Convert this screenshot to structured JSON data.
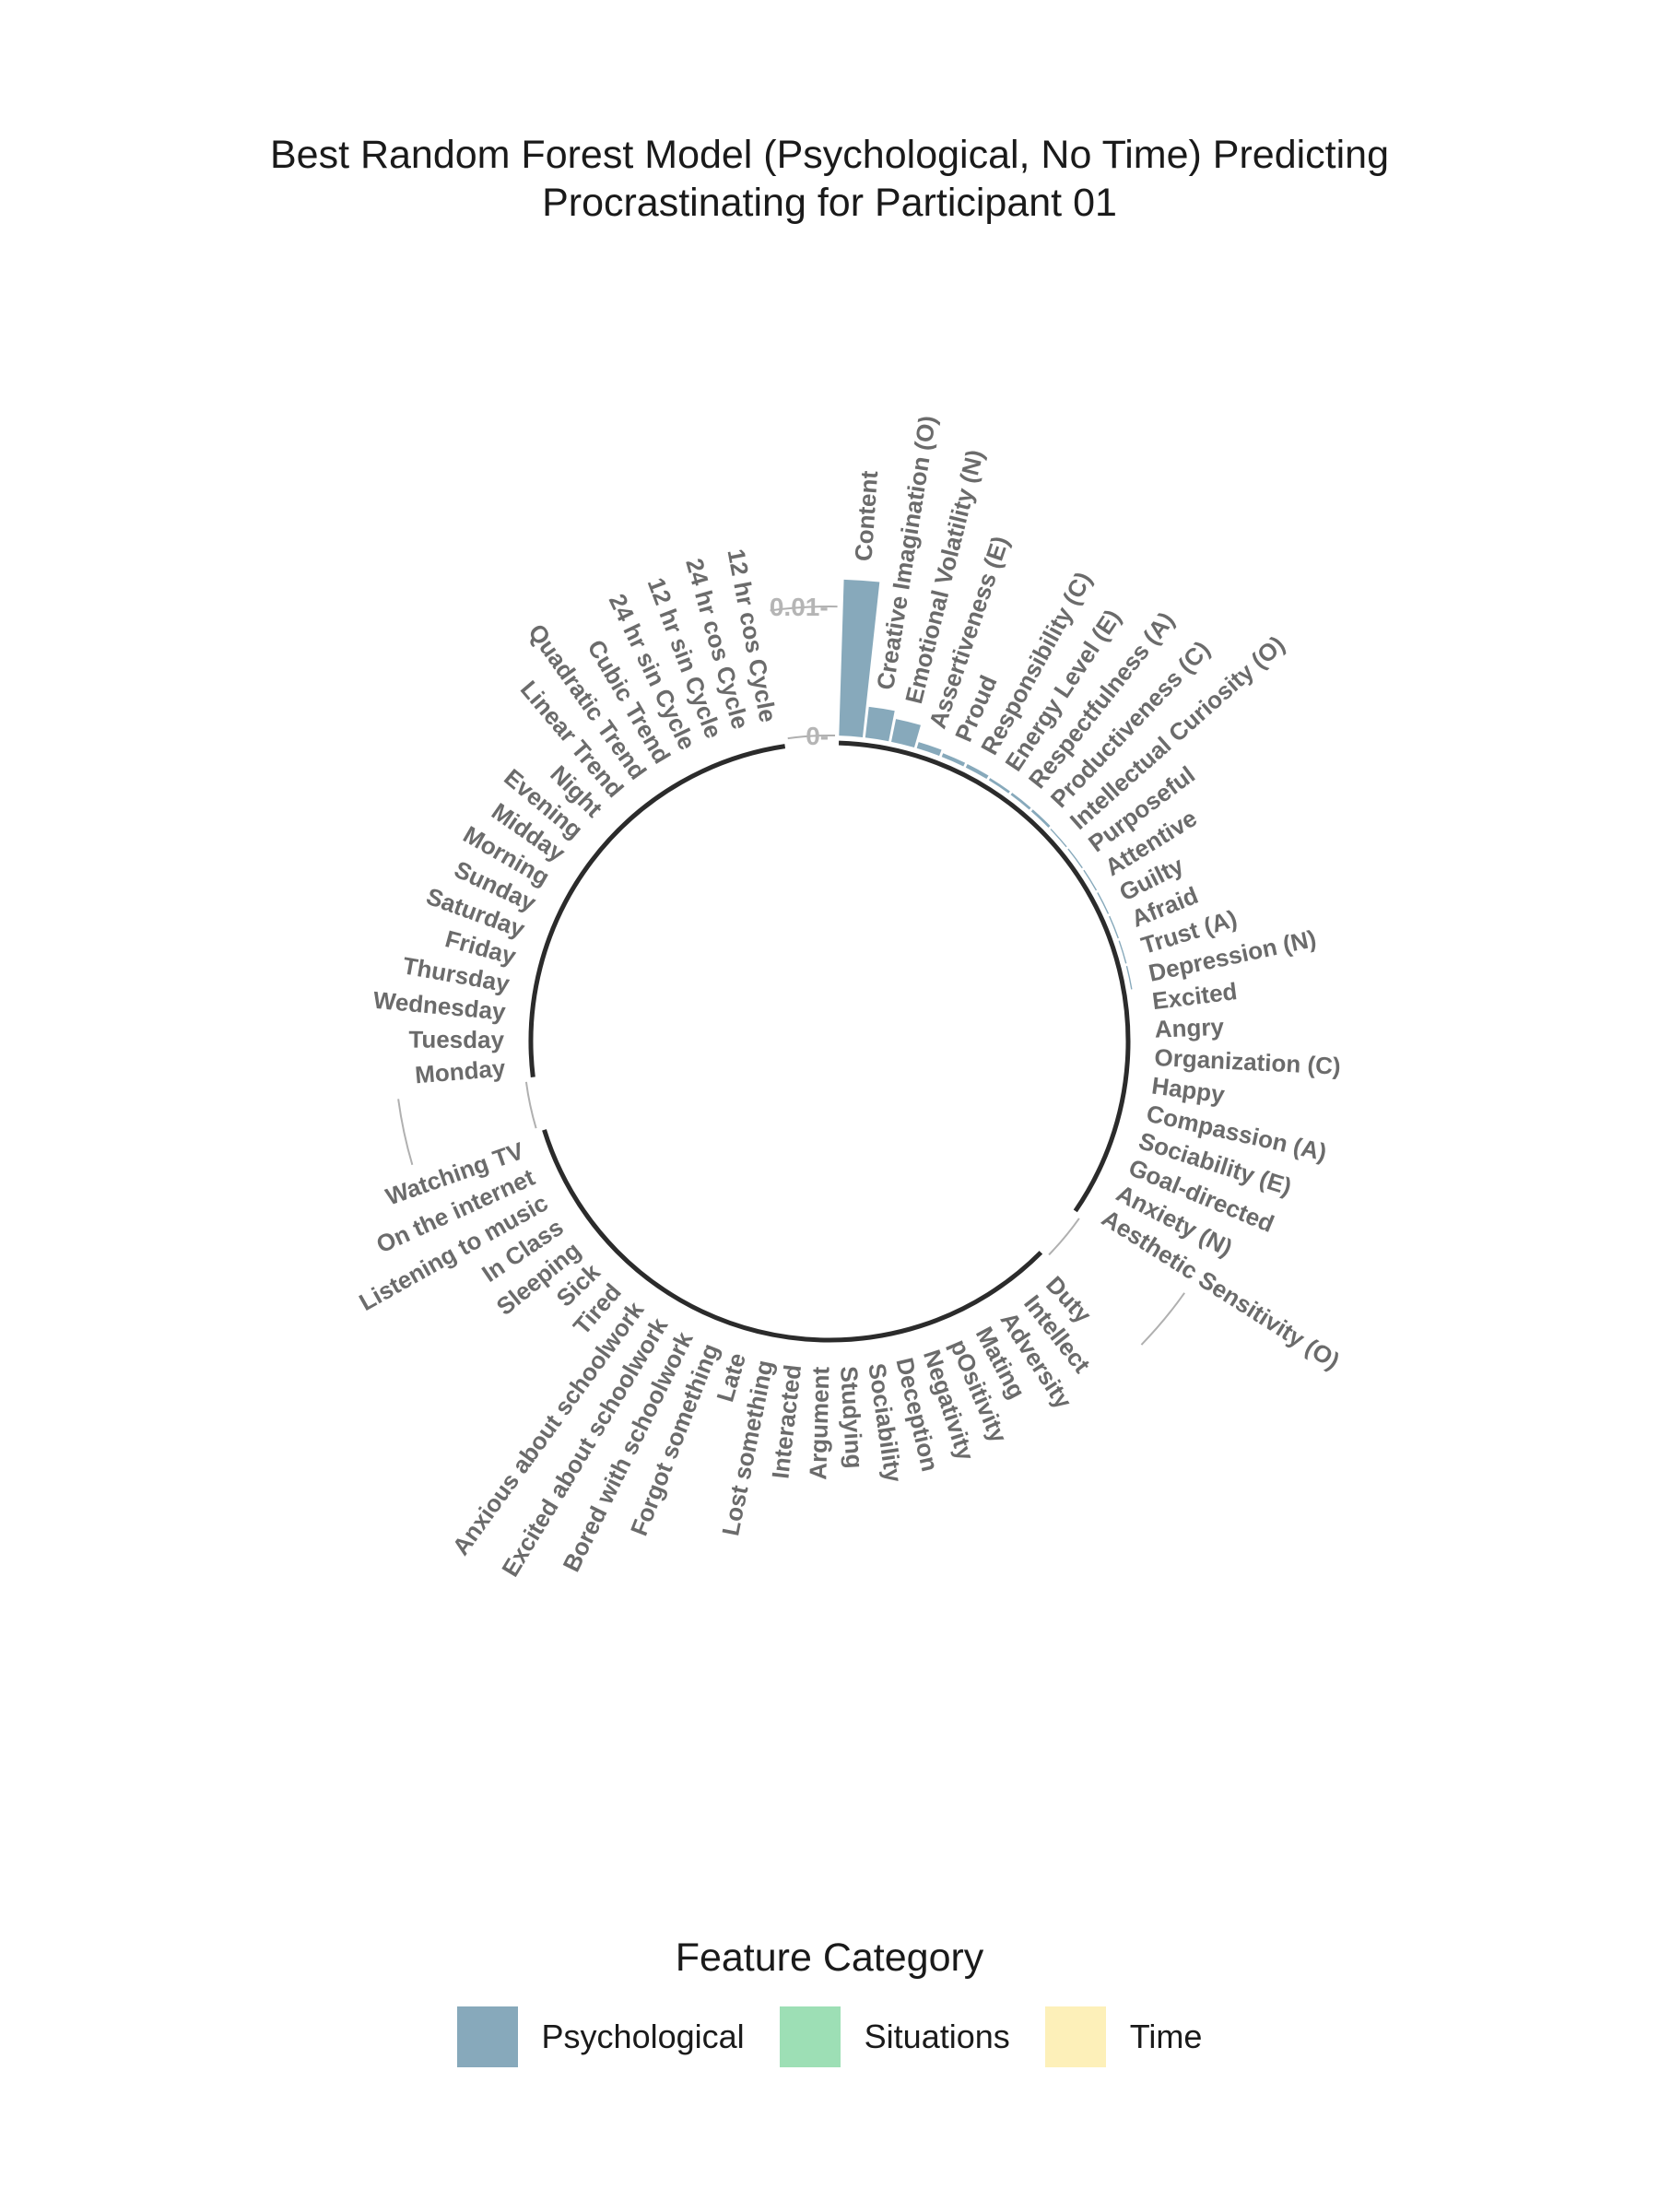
{
  "title_lines": [
    "Best Random Forest Model (Psychological, No Time) Predicting",
    "Procrastinating for Participant 01"
  ],
  "chart_data": {
    "type": "bar",
    "coordinate_system": "polar",
    "title": "Best Random Forest Model (Psychological, No Time) Predicting Procrastinating for Participant 01",
    "ylim": [
      0,
      0.012
    ],
    "yticks": [
      {
        "label": "0.01-",
        "value": 0.01
      },
      {
        "label": "0-",
        "value": 0
      }
    ],
    "legend_title": "Feature Category",
    "legend_position": "bottom",
    "colors": {
      "Psychological": "#87a9bb",
      "Situations": "#9ddfb5",
      "Time": "#fdf0b9"
    },
    "groups": [
      {
        "category": "Psychological",
        "features": [
          {
            "label": "Content",
            "value": 0.0121
          },
          {
            "label": "Creative Imagination (O)",
            "value": 0.0024
          },
          {
            "label": "Emotional Volatility (N)",
            "value": 0.0018
          },
          {
            "label": "Assertiveness (E)",
            "value": 0.0005
          },
          {
            "label": "Proud",
            "value": 0.0003
          },
          {
            "label": "Responsibility (C)",
            "value": 0.0003
          },
          {
            "label": "Energy Level (E)",
            "value": 0.0002
          },
          {
            "label": "Respectfulness (A)",
            "value": 0.0002
          },
          {
            "label": "Productiveness (C)",
            "value": 0.0002
          },
          {
            "label": "Intellectual Curiosity (O)",
            "value": 0.0001
          },
          {
            "label": "Purposeful",
            "value": 0.0001
          },
          {
            "label": "Attentive",
            "value": 0.0001
          },
          {
            "label": "Guilty",
            "value": 0.0001
          },
          {
            "label": "Afraid",
            "value": 0.0001
          },
          {
            "label": "Trust (A)",
            "value": 0.0001
          },
          {
            "label": "Depression (N)",
            "value": 0.0001
          },
          {
            "label": "Excited",
            "value": 0
          },
          {
            "label": "Angry",
            "value": 0
          },
          {
            "label": "Organization (C)",
            "value": 0
          },
          {
            "label": "Happy",
            "value": 0
          },
          {
            "label": "Compassion (A)",
            "value": 0
          },
          {
            "label": "Sociability (E)",
            "value": 0
          },
          {
            "label": "Goal-directed",
            "value": 0
          },
          {
            "label": "Anxiety (N)",
            "value": 0
          },
          {
            "label": "Aesthetic Sensitivity (O)",
            "value": 0
          }
        ]
      },
      {
        "category": "Situations",
        "features": [
          {
            "label": "Duty",
            "value": 0
          },
          {
            "label": "Intellect",
            "value": 0
          },
          {
            "label": "Adversity",
            "value": 0
          },
          {
            "label": "Mating",
            "value": 0
          },
          {
            "label": "pOsitivity",
            "value": 0
          },
          {
            "label": "Negativity",
            "value": 0
          },
          {
            "label": "Deception",
            "value": 0
          },
          {
            "label": "Sociability",
            "value": 0
          },
          {
            "label": "Studying",
            "value": 0
          },
          {
            "label": "Argument",
            "value": 0
          },
          {
            "label": "Interacted",
            "value": 0
          },
          {
            "label": "Lost something",
            "value": 0
          },
          {
            "label": "Late",
            "value": 0
          },
          {
            "label": "Forgot something",
            "value": 0
          },
          {
            "label": "Bored with schoolwork",
            "value": 0
          },
          {
            "label": "Excited about schoolwork",
            "value": 0
          },
          {
            "label": "Anxious about schoolwork",
            "value": 0
          },
          {
            "label": "Tired",
            "value": 0
          },
          {
            "label": "Sick",
            "value": 0
          },
          {
            "label": "Sleeping",
            "value": 0
          },
          {
            "label": "In Class",
            "value": 0
          },
          {
            "label": "Listening to music",
            "value": 0
          },
          {
            "label": "On the internet",
            "value": 0
          },
          {
            "label": "Watching TV",
            "value": 0
          }
        ]
      },
      {
        "category": "Time",
        "features": [
          {
            "label": "Monday",
            "value": 0
          },
          {
            "label": "Tuesday",
            "value": 0
          },
          {
            "label": "Wednesday",
            "value": 0
          },
          {
            "label": "Thursday",
            "value": 0
          },
          {
            "label": "Friday",
            "value": 0
          },
          {
            "label": "Saturday",
            "value": 0
          },
          {
            "label": "Sunday",
            "value": 0
          },
          {
            "label": "Morning",
            "value": 0
          },
          {
            "label": "Midday",
            "value": 0
          },
          {
            "label": "Evening",
            "value": 0
          },
          {
            "label": "Night",
            "value": 0
          },
          {
            "label": "Linear Trend",
            "value": 0
          },
          {
            "label": "Quadratic Trend",
            "value": 0
          },
          {
            "label": "Cubic Trend",
            "value": 0
          },
          {
            "label": "24 hr sin Cycle",
            "value": 0
          },
          {
            "label": "12 hr sin Cycle",
            "value": 0
          },
          {
            "label": "24 hr cos Cycle",
            "value": 0
          },
          {
            "label": "12 hr cos Cycle",
            "value": 0
          }
        ]
      }
    ]
  },
  "legend": {
    "title": "Feature Category",
    "items": [
      {
        "label": "Psychological",
        "color": "#87a9bb"
      },
      {
        "label": "Situations",
        "color": "#9ddfb5"
      },
      {
        "label": "Time",
        "color": "#fdf0b9"
      }
    ]
  }
}
